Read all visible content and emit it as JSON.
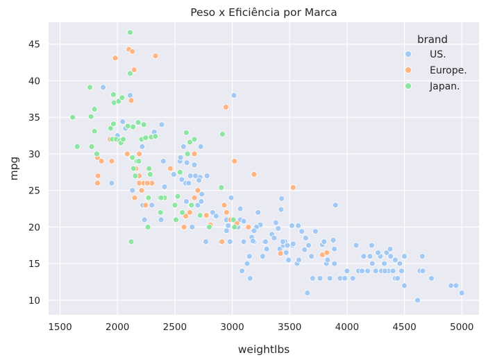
{
  "chart_data": {
    "type": "scatter",
    "title": "Peso x Eficiência por Marca",
    "xlabel": "weightlbs",
    "ylabel": "mpg",
    "xlim": [
      1400,
      5150
    ],
    "ylim": [
      8,
      48
    ],
    "xticks": [
      1500,
      2000,
      2500,
      3000,
      3500,
      4000,
      4500,
      5000
    ],
    "yticks": [
      10,
      15,
      20,
      25,
      30,
      35,
      40,
      45
    ],
    "grid": true,
    "legend": {
      "title": "brand",
      "placement": "top-right"
    },
    "series": [
      {
        "name": "US.",
        "color": "#a1c9f4",
        "points": [
          [
            1875,
            39.1
          ],
          [
            1950,
            26
          ],
          [
            2045,
            34.4
          ],
          [
            2070,
            33.5
          ],
          [
            2110,
            38
          ],
          [
            2125,
            29.5
          ],
          [
            2130,
            25
          ],
          [
            2155,
            28
          ],
          [
            2185,
            34.2
          ],
          [
            2215,
            31
          ],
          [
            2220,
            23
          ],
          [
            2235,
            21
          ],
          [
            2300,
            23
          ],
          [
            2385,
            34
          ],
          [
            2380,
            21
          ],
          [
            2400,
            29
          ],
          [
            2490,
            27.2
          ],
          [
            2545,
            29
          ],
          [
            2560,
            26.5
          ],
          [
            2575,
            31
          ],
          [
            2595,
            26
          ],
          [
            2600,
            23.5
          ],
          [
            2605,
            28.8
          ],
          [
            2620,
            26
          ],
          [
            2635,
            27
          ],
          [
            2640,
            23
          ],
          [
            2670,
            28.5
          ],
          [
            2680,
            27
          ],
          [
            2700,
            23
          ],
          [
            2720,
            26.8
          ],
          [
            2725,
            31
          ],
          [
            2730,
            23.5
          ],
          [
            2735,
            24.5
          ],
          [
            2770,
            18
          ],
          [
            2780,
            27
          ],
          [
            2830,
            22
          ],
          [
            2900,
            18
          ],
          [
            2930,
            23
          ],
          [
            2950,
            19.5
          ],
          [
            2965,
            20.2
          ],
          [
            2980,
            18
          ],
          [
            2990,
            24
          ],
          [
            3015,
            38
          ],
          [
            3040,
            20.5
          ],
          [
            3050,
            20
          ],
          [
            3070,
            22.5
          ],
          [
            3085,
            14
          ],
          [
            3100,
            18
          ],
          [
            3130,
            15
          ],
          [
            3155,
            13
          ],
          [
            3170,
            18.6
          ],
          [
            3190,
            18
          ],
          [
            3225,
            22
          ],
          [
            3245,
            20.3
          ],
          [
            3265,
            16
          ],
          [
            3280,
            18
          ],
          [
            3300,
            17
          ],
          [
            3345,
            19
          ],
          [
            3365,
            18.5
          ],
          [
            3380,
            20.6
          ],
          [
            3400,
            19.8
          ],
          [
            3415,
            17
          ],
          [
            3425,
            22.4
          ],
          [
            3430,
            23.9
          ],
          [
            3445,
            17.5
          ],
          [
            3460,
            18
          ],
          [
            3470,
            16.5
          ],
          [
            3490,
            15.5
          ],
          [
            3520,
            20.2
          ],
          [
            3525,
            17.5
          ],
          [
            3565,
            15
          ],
          [
            3575,
            20.2
          ],
          [
            3605,
            19.4
          ],
          [
            3630,
            16.9
          ],
          [
            3640,
            18.5
          ],
          [
            3655,
            11
          ],
          [
            3665,
            17.5
          ],
          [
            3690,
            16
          ],
          [
            3725,
            19.4
          ],
          [
            3765,
            13
          ],
          [
            3785,
            17.6
          ],
          [
            3800,
            18
          ],
          [
            3820,
            15
          ],
          [
            3830,
            15.5
          ],
          [
            3850,
            13
          ],
          [
            3880,
            18.2
          ],
          [
            3890,
            17
          ],
          [
            3900,
            23
          ],
          [
            3940,
            13
          ],
          [
            3980,
            13
          ],
          [
            4050,
            13
          ],
          [
            4080,
            17.5
          ],
          [
            4100,
            14
          ],
          [
            4130,
            14
          ],
          [
            4145,
            16
          ],
          [
            4200,
            16
          ],
          [
            4215,
            17.5
          ],
          [
            4220,
            15
          ],
          [
            4250,
            14
          ],
          [
            4290,
            16
          ],
          [
            4300,
            14
          ],
          [
            4325,
            15
          ],
          [
            4345,
            16.5
          ],
          [
            4360,
            14
          ],
          [
            4375,
            17
          ],
          [
            4380,
            16
          ],
          [
            4400,
            14
          ],
          [
            4420,
            13
          ],
          [
            4460,
            15
          ],
          [
            4475,
            14
          ],
          [
            4500,
            16
          ],
          [
            4500,
            12
          ],
          [
            4615,
            10
          ],
          [
            4635,
            14
          ],
          [
            4655,
            16
          ],
          [
            4660,
            14
          ],
          [
            4735,
            13
          ],
          [
            4905,
            12
          ],
          [
            4950,
            12
          ],
          [
            5000,
            11
          ],
          [
            3150,
            16
          ],
          [
            3210,
            20
          ],
          [
            3290,
            18
          ],
          [
            3480,
            17.5
          ],
          [
            3700,
            13
          ],
          [
            4000,
            14
          ],
          [
            4270,
            16.5
          ],
          [
            4440,
            13
          ],
          [
            2320,
            33
          ],
          [
            3440,
            18
          ],
          [
            3580,
            15.5
          ],
          [
            4180,
            14
          ],
          [
            3070,
            21
          ],
          [
            3190,
            19.5
          ],
          [
            2000,
            32.5
          ],
          [
            2550,
            29.5
          ],
          [
            2410,
            25.5
          ],
          [
            2710,
            26.4
          ],
          [
            2950,
            21
          ],
          [
            3530,
            17.7
          ],
          [
            3890,
            15
          ],
          [
            4330,
            14
          ],
          [
            4420,
            15.5
          ],
          [
            2650,
            20
          ],
          [
            2860,
            21.5
          ],
          [
            3100,
            20.8
          ],
          [
            3180,
            18.1
          ]
        ]
      },
      {
        "name": "Europe.",
        "color": "#ffb482",
        "points": [
          [
            1825,
            29.5
          ],
          [
            1825,
            26
          ],
          [
            1830,
            27
          ],
          [
            1860,
            29
          ],
          [
            1935,
            32
          ],
          [
            1950,
            29
          ],
          [
            1980,
            43.1
          ],
          [
            2085,
            30
          ],
          [
            2100,
            44.3
          ],
          [
            2130,
            44
          ],
          [
            2120,
            37.3
          ],
          [
            2145,
            41.5
          ],
          [
            2150,
            24
          ],
          [
            2190,
            26
          ],
          [
            2190,
            27
          ],
          [
            2210,
            25
          ],
          [
            2230,
            26
          ],
          [
            2245,
            23
          ],
          [
            2265,
            24
          ],
          [
            2300,
            26
          ],
          [
            2330,
            43.4
          ],
          [
            2375,
            22
          ],
          [
            2410,
            24
          ],
          [
            2460,
            28
          ],
          [
            2580,
            20
          ],
          [
            2595,
            21.5
          ],
          [
            2630,
            22
          ],
          [
            2670,
            24
          ],
          [
            2700,
            25
          ],
          [
            2775,
            21.6
          ],
          [
            2810,
            20.3
          ],
          [
            2910,
            18
          ],
          [
            2930,
            23
          ],
          [
            2945,
            36.4
          ],
          [
            2950,
            22
          ],
          [
            2985,
            21
          ],
          [
            3020,
            29
          ],
          [
            3040,
            20.5
          ],
          [
            3140,
            20
          ],
          [
            3190,
            27.2
          ],
          [
            3420,
            16.4
          ],
          [
            3530,
            25.4
          ],
          [
            3785,
            16.2
          ],
          [
            3825,
            16.5
          ],
          [
            2190,
            30
          ],
          [
            2160,
            28
          ],
          [
            2260,
            26
          ],
          [
            2670,
            30
          ]
        ]
      },
      {
        "name": "Japan.",
        "color": "#8de5a1",
        "points": [
          [
            1610,
            35
          ],
          [
            1650,
            31
          ],
          [
            1760,
            39.1
          ],
          [
            1770,
            35.1
          ],
          [
            1775,
            31
          ],
          [
            1800,
            33.1
          ],
          [
            1800,
            36.1
          ],
          [
            1820,
            30
          ],
          [
            1940,
            33.5
          ],
          [
            1955,
            32
          ],
          [
            1965,
            34.1
          ],
          [
            1965,
            38.1
          ],
          [
            1970,
            37
          ],
          [
            1990,
            32
          ],
          [
            2010,
            37.2
          ],
          [
            2020,
            31.8
          ],
          [
            2030,
            31.5
          ],
          [
            2040,
            37.7
          ],
          [
            2050,
            32
          ],
          [
            2110,
            46.6
          ],
          [
            2110,
            41
          ],
          [
            2120,
            18
          ],
          [
            2130,
            29.5
          ],
          [
            2135,
            33.7
          ],
          [
            2140,
            28
          ],
          [
            2155,
            27
          ],
          [
            2170,
            29
          ],
          [
            2180,
            34.3
          ],
          [
            2210,
            32
          ],
          [
            2230,
            34
          ],
          [
            2245,
            32.2
          ],
          [
            2265,
            20
          ],
          [
            2270,
            24
          ],
          [
            2275,
            28
          ],
          [
            2285,
            27.2
          ],
          [
            2295,
            32.3
          ],
          [
            2330,
            32.4
          ],
          [
            2370,
            24
          ],
          [
            2375,
            22
          ],
          [
            2410,
            24
          ],
          [
            2500,
            23
          ],
          [
            2510,
            21
          ],
          [
            2525,
            24.2
          ],
          [
            2545,
            27.5
          ],
          [
            2565,
            22
          ],
          [
            2600,
            32.9
          ],
          [
            2610,
            30
          ],
          [
            2630,
            31.6
          ],
          [
            2645,
            23
          ],
          [
            2670,
            32
          ],
          [
            2720,
            21.6
          ],
          [
            2800,
            20
          ],
          [
            2905,
            25.4
          ],
          [
            2915,
            32.7
          ],
          [
            3010,
            21
          ],
          [
            3020,
            20
          ],
          [
            2090,
            33.8
          ],
          [
            2185,
            29
          ],
          [
            2380,
            24
          ]
        ]
      }
    ]
  }
}
